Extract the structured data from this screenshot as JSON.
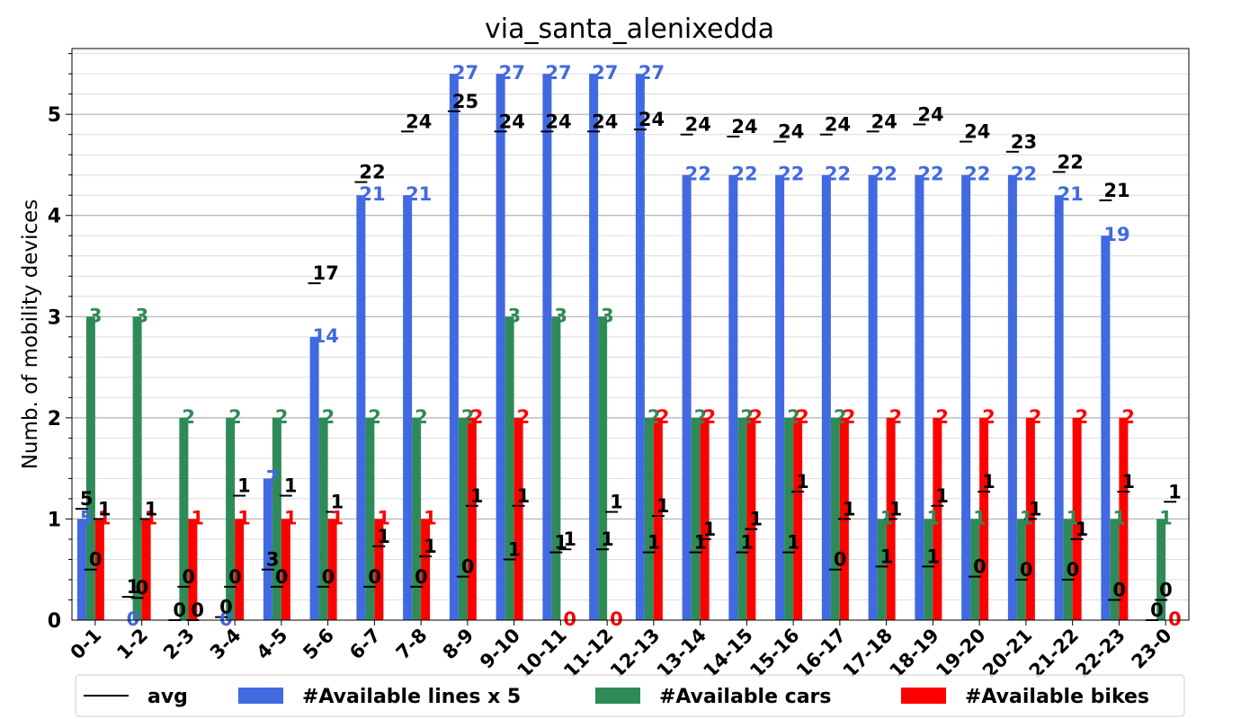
{
  "chart_data": {
    "type": "bar",
    "title": "via_santa_alenixedda",
    "ylabel": "Numb. of mobility devices",
    "xlabel": "",
    "ylim": [
      0,
      5.65
    ],
    "yticks": [
      0,
      1,
      2,
      3,
      4,
      5
    ],
    "grid": "horizontal",
    "legend_position": "bottom",
    "categories": [
      "0-1",
      "1-2",
      "2-3",
      "3-4",
      "4-5",
      "5-6",
      "6-7",
      "7-8",
      "8-9",
      "9-10",
      "10-11",
      "11-12",
      "12-13",
      "13-14",
      "14-15",
      "15-16",
      "16-17",
      "17-18",
      "18-19",
      "19-20",
      "20-21",
      "21-22",
      "22-23",
      "23-0"
    ],
    "series": [
      {
        "name": "avg",
        "kind": "line-marker",
        "color": "#000000",
        "sub_markers": [
          {
            "values": [
              1.1,
              0.23,
              0.0,
              0.03,
              0.5,
              3.33,
              4.33,
              4.83,
              5.03,
              4.83,
              4.83,
              4.83,
              4.85,
              4.8,
              4.78,
              4.73,
              4.8,
              4.83,
              4.9,
              4.73,
              4.63,
              4.43,
              4.15,
              0.0
            ],
            "labels": [
              "5",
              "1",
              "0",
              "0",
              "3",
              "17",
              "22",
              "24",
              "25",
              "24",
              "24",
              "24",
              "24",
              "24",
              "24",
              "24",
              "24",
              "24",
              "24",
              "24",
              "23",
              "22",
              "21",
              "0"
            ]
          },
          {
            "values": [
              0.5,
              0.22,
              0.33,
              0.33,
              0.33,
              0.33,
              0.33,
              0.33,
              0.43,
              0.6,
              0.67,
              0.7,
              0.67,
              0.67,
              0.67,
              0.67,
              0.5,
              0.53,
              0.53,
              0.43,
              0.4,
              0.4,
              0.2,
              0.2
            ],
            "labels": [
              "0",
              "0",
              "0",
              "0",
              "0",
              "0",
              "0",
              "0",
              "0",
              "1",
              "1",
              "1",
              "1",
              "1",
              "1",
              "1",
              "0",
              "1",
              "1",
              "0",
              "0",
              "0",
              "0",
              "0"
            ]
          },
          {
            "values": [
              1.0,
              1.0,
              0.0,
              1.23,
              1.23,
              1.07,
              0.73,
              0.63,
              1.13,
              1.13,
              0.7,
              1.07,
              1.03,
              0.8,
              0.9,
              1.27,
              1.0,
              1.0,
              1.13,
              1.27,
              1.0,
              0.8,
              1.27,
              1.17
            ],
            "labels": [
              "1",
              "1",
              "0",
              "1",
              "1",
              "1",
              "1",
              "1",
              "1",
              "1",
              "1",
              "1",
              "1",
              "1",
              "1",
              "1",
              "1",
              "1",
              "1",
              "1",
              "1",
              "1",
              "1",
              "1"
            ]
          }
        ]
      },
      {
        "name": "#Available lines x 5",
        "color": "#4169e1",
        "values": [
          1.0,
          0.0,
          0.0,
          0.0,
          1.4,
          2.8,
          4.2,
          4.2,
          5.4,
          5.4,
          5.4,
          5.4,
          5.4,
          4.4,
          4.4,
          4.4,
          4.4,
          4.4,
          4.4,
          4.4,
          4.4,
          4.2,
          3.8,
          0.0
        ],
        "labels": [
          "5",
          "0",
          "",
          "0",
          "7",
          "14",
          "21",
          "21",
          "27",
          "27",
          "27",
          "27",
          "27",
          "22",
          "22",
          "22",
          "22",
          "22",
          "22",
          "22",
          "22",
          "21",
          "19",
          ""
        ]
      },
      {
        "name": "#Available cars",
        "color": "#2e8b57",
        "values": [
          3,
          3,
          2,
          2,
          2,
          2,
          2,
          2,
          2,
          3,
          3,
          3,
          2,
          2,
          2,
          2,
          2,
          1,
          1,
          1,
          1,
          1,
          1,
          1
        ],
        "labels": [
          "3",
          "3",
          "2",
          "2",
          "2",
          "2",
          "2",
          "2",
          "2",
          "3",
          "3",
          "3",
          "2",
          "2",
          "2",
          "2",
          "2",
          "1",
          "1",
          "1",
          "1",
          "1",
          "1",
          "1"
        ]
      },
      {
        "name": "#Available bikes",
        "color": "#ff0000",
        "values": [
          1,
          1,
          1,
          1,
          1,
          1,
          1,
          1,
          2,
          2,
          0,
          0,
          2,
          2,
          2,
          2,
          2,
          2,
          2,
          2,
          2,
          2,
          2,
          0
        ],
        "labels": [
          "1",
          "1",
          "1",
          "1",
          "1",
          "1",
          "1",
          "1",
          "2",
          "2",
          "0",
          "0",
          "2",
          "2",
          "2",
          "2",
          "2",
          "2",
          "2",
          "2",
          "2",
          "2",
          "2",
          "0"
        ]
      }
    ]
  }
}
